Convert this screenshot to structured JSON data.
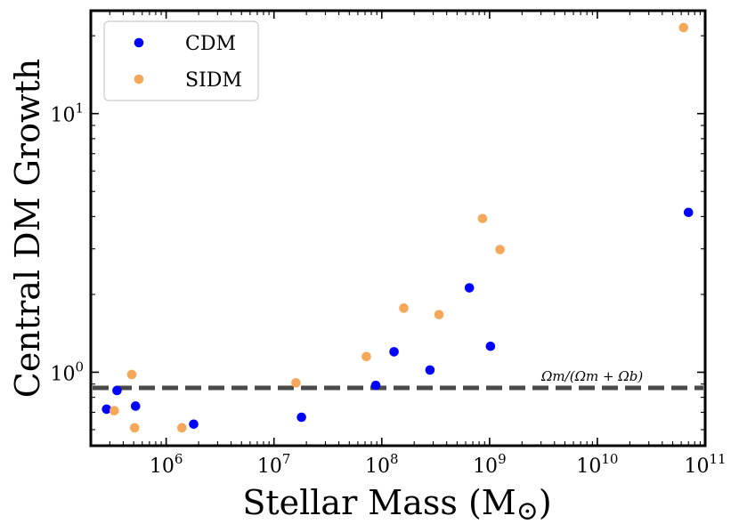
{
  "chart_data": {
    "type": "scatter",
    "xscale": "log",
    "yscale": "log",
    "xlim": [
      200000,
      100000000000
    ],
    "ylim": [
      0.52,
      25
    ],
    "xlabel": "Stellar Mass (M",
    "xlabel_symbol": "⊙",
    "xlabel_close": ")",
    "ylabel": "Central DM Growth",
    "x_ticks": [
      {
        "value": 1000000,
        "base": "10",
        "exp": "6"
      },
      {
        "value": 10000000,
        "base": "10",
        "exp": "7"
      },
      {
        "value": 100000000,
        "base": "10",
        "exp": "8"
      },
      {
        "value": 1000000000,
        "base": "10",
        "exp": "9"
      },
      {
        "value": 10000000000,
        "base": "10",
        "exp": "10"
      },
      {
        "value": 100000000000,
        "base": "10",
        "exp": "11"
      }
    ],
    "y_ticks": [
      {
        "value": 1,
        "base": "10",
        "exp": "0"
      },
      {
        "value": 10,
        "base": "10",
        "exp": "1"
      }
    ],
    "legend_position": "top-left",
    "hline": {
      "value": 0.87,
      "label": "Ωm/(Ωm + Ωb)",
      "color": "#4a4a4a"
    },
    "series": [
      {
        "name": "CDM",
        "color": "#0000ff",
        "points": [
          {
            "x": 280000,
            "y": 0.72
          },
          {
            "x": 350000,
            "y": 0.85
          },
          {
            "x": 520000,
            "y": 0.74
          },
          {
            "x": 1800000,
            "y": 0.63
          },
          {
            "x": 18000000,
            "y": 0.67
          },
          {
            "x": 88000000,
            "y": 0.89
          },
          {
            "x": 130000000,
            "y": 1.2
          },
          {
            "x": 280000000,
            "y": 1.02
          },
          {
            "x": 650000000,
            "y": 2.12
          },
          {
            "x": 1020000000,
            "y": 1.26
          },
          {
            "x": 70000000000,
            "y": 4.15
          }
        ]
      },
      {
        "name": "SIDM",
        "color": "#f5a85a",
        "points": [
          {
            "x": 330000,
            "y": 0.71
          },
          {
            "x": 480000,
            "y": 0.98
          },
          {
            "x": 510000,
            "y": 0.61
          },
          {
            "x": 1400000,
            "y": 0.61
          },
          {
            "x": 16000000,
            "y": 0.91
          },
          {
            "x": 72000000,
            "y": 1.15
          },
          {
            "x": 160000000,
            "y": 1.77
          },
          {
            "x": 340000000,
            "y": 1.67
          },
          {
            "x": 860000000,
            "y": 3.93
          },
          {
            "x": 1250000000,
            "y": 2.98
          },
          {
            "x": 63000000000,
            "y": 21.5
          }
        ]
      }
    ]
  }
}
